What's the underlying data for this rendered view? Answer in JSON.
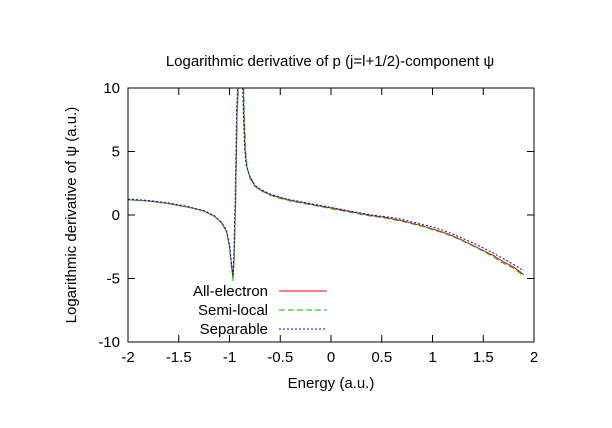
{
  "chart_data": {
    "type": "line",
    "title": "Logarithmic derivative of p (j=l+1/2)-component ψ",
    "xlabel": "Energy (a.u.)",
    "ylabel": "Logarithmic derivative of ψ (a.u.)",
    "xlim": [
      -2,
      2
    ],
    "ylim": [
      -10,
      10
    ],
    "xticks": [
      "-2",
      "-1.5",
      "-1",
      "-0.5",
      "0",
      "0.5",
      "1",
      "1.5",
      "2"
    ],
    "yticks": [
      "-10",
      "-5",
      "0",
      "5",
      "10"
    ],
    "grid": false,
    "legend_position": "bottom-left",
    "series": [
      {
        "name": "All-electron",
        "color": "#ff0000",
        "dash": "solid",
        "segments": [
          [
            [
              -2.0,
              1.2
            ],
            [
              -1.8,
              1.1
            ],
            [
              -1.6,
              0.9
            ],
            [
              -1.4,
              0.6
            ],
            [
              -1.25,
              0.3
            ],
            [
              -1.15,
              -0.1
            ],
            [
              -1.08,
              -0.6
            ],
            [
              -1.03,
              -1.3
            ],
            [
              -1.0,
              -2.5
            ],
            [
              -0.98,
              -4.0
            ],
            [
              -0.965,
              -5.0
            ],
            [
              -0.955,
              -3.5
            ],
            [
              -0.94,
              1.0
            ],
            [
              -0.925,
              8.0
            ],
            [
              -0.915,
              10.0
            ]
          ],
          [
            [
              -0.865,
              10.0
            ],
            [
              -0.855,
              7.0
            ],
            [
              -0.845,
              5.0
            ],
            [
              -0.83,
              3.8
            ],
            [
              -0.8,
              3.0
            ],
            [
              -0.75,
              2.3
            ],
            [
              -0.7,
              2.0
            ],
            [
              -0.6,
              1.6
            ],
            [
              -0.5,
              1.35
            ],
            [
              -0.4,
              1.15
            ],
            [
              -0.3,
              1.0
            ],
            [
              -0.2,
              0.85
            ],
            [
              -0.1,
              0.7
            ],
            [
              0.0,
              0.55
            ],
            [
              0.1,
              0.4
            ],
            [
              0.2,
              0.25
            ],
            [
              0.3,
              0.1
            ],
            [
              0.4,
              -0.05
            ],
            [
              0.5,
              -0.15
            ],
            [
              0.6,
              -0.3
            ],
            [
              0.7,
              -0.45
            ],
            [
              0.8,
              -0.65
            ],
            [
              0.9,
              -0.85
            ],
            [
              1.0,
              -1.1
            ],
            [
              1.1,
              -1.35
            ],
            [
              1.2,
              -1.65
            ],
            [
              1.3,
              -2.0
            ],
            [
              1.4,
              -2.4
            ],
            [
              1.5,
              -2.8
            ],
            [
              1.6,
              -3.2
            ],
            [
              1.7,
              -3.7
            ],
            [
              1.8,
              -4.1
            ],
            [
              1.9,
              -4.7
            ]
          ]
        ]
      },
      {
        "name": "Semi-local",
        "color": "#00c000",
        "dash": "dashed",
        "segments": [
          [
            [
              -2.0,
              1.2
            ],
            [
              -1.8,
              1.1
            ],
            [
              -1.6,
              0.9
            ],
            [
              -1.4,
              0.6
            ],
            [
              -1.25,
              0.3
            ],
            [
              -1.15,
              -0.1
            ],
            [
              -1.08,
              -0.6
            ],
            [
              -1.03,
              -1.3
            ],
            [
              -1.0,
              -2.5
            ],
            [
              -0.98,
              -4.0
            ],
            [
              -0.965,
              -5.2
            ],
            [
              -0.955,
              -3.7
            ],
            [
              -0.94,
              0.8
            ],
            [
              -0.925,
              8.0
            ],
            [
              -0.91,
              10.0
            ]
          ],
          [
            [
              -0.86,
              10.0
            ],
            [
              -0.85,
              7.0
            ],
            [
              -0.84,
              5.0
            ],
            [
              -0.825,
              3.7
            ],
            [
              -0.8,
              2.9
            ],
            [
              -0.75,
              2.25
            ],
            [
              -0.7,
              1.95
            ],
            [
              -0.6,
              1.55
            ],
            [
              -0.5,
              1.3
            ],
            [
              -0.4,
              1.1
            ],
            [
              -0.3,
              0.95
            ],
            [
              -0.2,
              0.8
            ],
            [
              -0.1,
              0.65
            ],
            [
              0.0,
              0.5
            ],
            [
              0.1,
              0.35
            ],
            [
              0.2,
              0.2
            ],
            [
              0.3,
              0.05
            ],
            [
              0.4,
              -0.1
            ],
            [
              0.5,
              -0.2
            ],
            [
              0.6,
              -0.35
            ],
            [
              0.7,
              -0.5
            ],
            [
              0.8,
              -0.7
            ],
            [
              0.9,
              -0.9
            ],
            [
              1.0,
              -1.15
            ],
            [
              1.1,
              -1.4
            ],
            [
              1.2,
              -1.7
            ],
            [
              1.3,
              -2.05
            ],
            [
              1.4,
              -2.45
            ],
            [
              1.5,
              -2.85
            ],
            [
              1.6,
              -3.3
            ],
            [
              1.7,
              -3.8
            ],
            [
              1.8,
              -4.2
            ],
            [
              1.9,
              -4.8
            ]
          ]
        ]
      },
      {
        "name": "Separable",
        "color": "#0000ff",
        "dash": "dotted",
        "segments": [
          [
            [
              -2.0,
              1.25
            ],
            [
              -1.8,
              1.15
            ],
            [
              -1.6,
              0.95
            ],
            [
              -1.4,
              0.65
            ],
            [
              -1.25,
              0.35
            ],
            [
              -1.15,
              -0.05
            ],
            [
              -1.08,
              -0.55
            ],
            [
              -1.03,
              -1.2
            ],
            [
              -1.0,
              -2.3
            ],
            [
              -0.98,
              -3.8
            ],
            [
              -0.968,
              -4.7
            ],
            [
              -0.958,
              -3.3
            ],
            [
              -0.945,
              1.2
            ],
            [
              -0.93,
              8.2
            ],
            [
              -0.92,
              10.0
            ]
          ],
          [
            [
              -0.87,
              10.0
            ],
            [
              -0.86,
              7.2
            ],
            [
              -0.85,
              5.2
            ],
            [
              -0.835,
              3.9
            ],
            [
              -0.8,
              3.05
            ],
            [
              -0.75,
              2.35
            ],
            [
              -0.7,
              2.05
            ],
            [
              -0.6,
              1.65
            ],
            [
              -0.5,
              1.4
            ],
            [
              -0.4,
              1.2
            ],
            [
              -0.3,
              1.05
            ],
            [
              -0.2,
              0.9
            ],
            [
              -0.1,
              0.75
            ],
            [
              0.0,
              0.6
            ],
            [
              0.1,
              0.45
            ],
            [
              0.2,
              0.3
            ],
            [
              0.3,
              0.15
            ],
            [
              0.4,
              0.0
            ],
            [
              0.5,
              -0.1
            ],
            [
              0.6,
              -0.2
            ],
            [
              0.7,
              -0.35
            ],
            [
              0.8,
              -0.55
            ],
            [
              0.9,
              -0.75
            ],
            [
              1.0,
              -0.95
            ],
            [
              1.1,
              -1.2
            ],
            [
              1.2,
              -1.5
            ],
            [
              1.3,
              -1.85
            ],
            [
              1.4,
              -2.2
            ],
            [
              1.5,
              -2.6
            ],
            [
              1.6,
              -3.0
            ],
            [
              1.7,
              -3.45
            ],
            [
              1.8,
              -3.9
            ],
            [
              1.9,
              -4.4
            ]
          ]
        ]
      }
    ]
  }
}
